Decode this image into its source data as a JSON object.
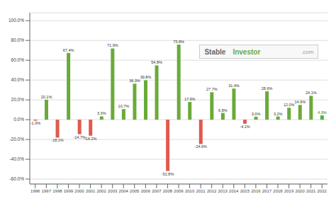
{
  "chart_data": {
    "type": "bar",
    "categories": [
      "1996",
      "1997",
      "1998",
      "1999",
      "2000",
      "2001",
      "2002",
      "2003",
      "2004",
      "2005",
      "2006",
      "2007",
      "2008",
      "2009",
      "2010",
      "2011",
      "2012",
      "2013",
      "2014",
      "2015",
      "2016",
      "2017",
      "2018",
      "2019",
      "2020",
      "2021",
      "2022"
    ],
    "values": [
      -1.0,
      20.1,
      -18.1,
      67.4,
      -14.7,
      -16.2,
      3.3,
      71.9,
      10.7,
      36.3,
      39.8,
      54.8,
      -51.8,
      75.8,
      17.9,
      -24.6,
      27.7,
      6.8,
      31.4,
      -4.1,
      3.0,
      28.6,
      3.2,
      12.0,
      14.9,
      24.1,
      4.3
    ],
    "value_labels": [
      "-1.0%",
      "20.1%",
      "-18.1%",
      "67.4%",
      "-14.7%",
      "-16.2%",
      "3.3%",
      "71.9%",
      "10.7%",
      "36.3%",
      "39.8%",
      "54.8%",
      "-51.8%",
      "75.8%",
      "17.9%",
      "-24.6%",
      "27.7%",
      "6.8%",
      "31.4%",
      "-4.1%",
      "3.0%",
      "28.6%",
      "3.2%",
      "12.0%",
      "14.9%",
      "24.1%",
      "4.3%"
    ],
    "colors": [
      "#e05a4e",
      "#6aaa3a",
      "#e05a4e",
      "#6aaa3a",
      "#e05a4e",
      "#e05a4e",
      "#6aaa3a",
      "#6aaa3a",
      "#6aaa3a",
      "#6aaa3a",
      "#6aaa3a",
      "#6aaa3a",
      "#e05a4e",
      "#6aaa3a",
      "#6aaa3a",
      "#e05a4e",
      "#6aaa3a",
      "#6aaa3a",
      "#6aaa3a",
      "#e05a4e",
      "#6aaa3a",
      "#6aaa3a",
      "#6aaa3a",
      "#6aaa3a",
      "#6aaa3a",
      "#6aaa3a",
      "#4db34a"
    ],
    "ylim": [
      -65,
      108
    ],
    "yticks": [
      {
        "value": -60,
        "label": "-60.0%"
      },
      {
        "value": -40,
        "label": "-40.0%"
      },
      {
        "value": -20,
        "label": "-20.0%"
      },
      {
        "value": 0,
        "label": "0.0%"
      },
      {
        "value": 20,
        "label": "20.0%"
      },
      {
        "value": 40,
        "label": "40.0%"
      },
      {
        "value": 60,
        "label": "60.0%"
      },
      {
        "value": 80,
        "label": "80.0%"
      },
      {
        "value": 100,
        "label": "100.0%"
      }
    ],
    "grid": true,
    "data_labels": true,
    "annotations": [
      "Stable",
      "Investor",
      ".com"
    ]
  }
}
